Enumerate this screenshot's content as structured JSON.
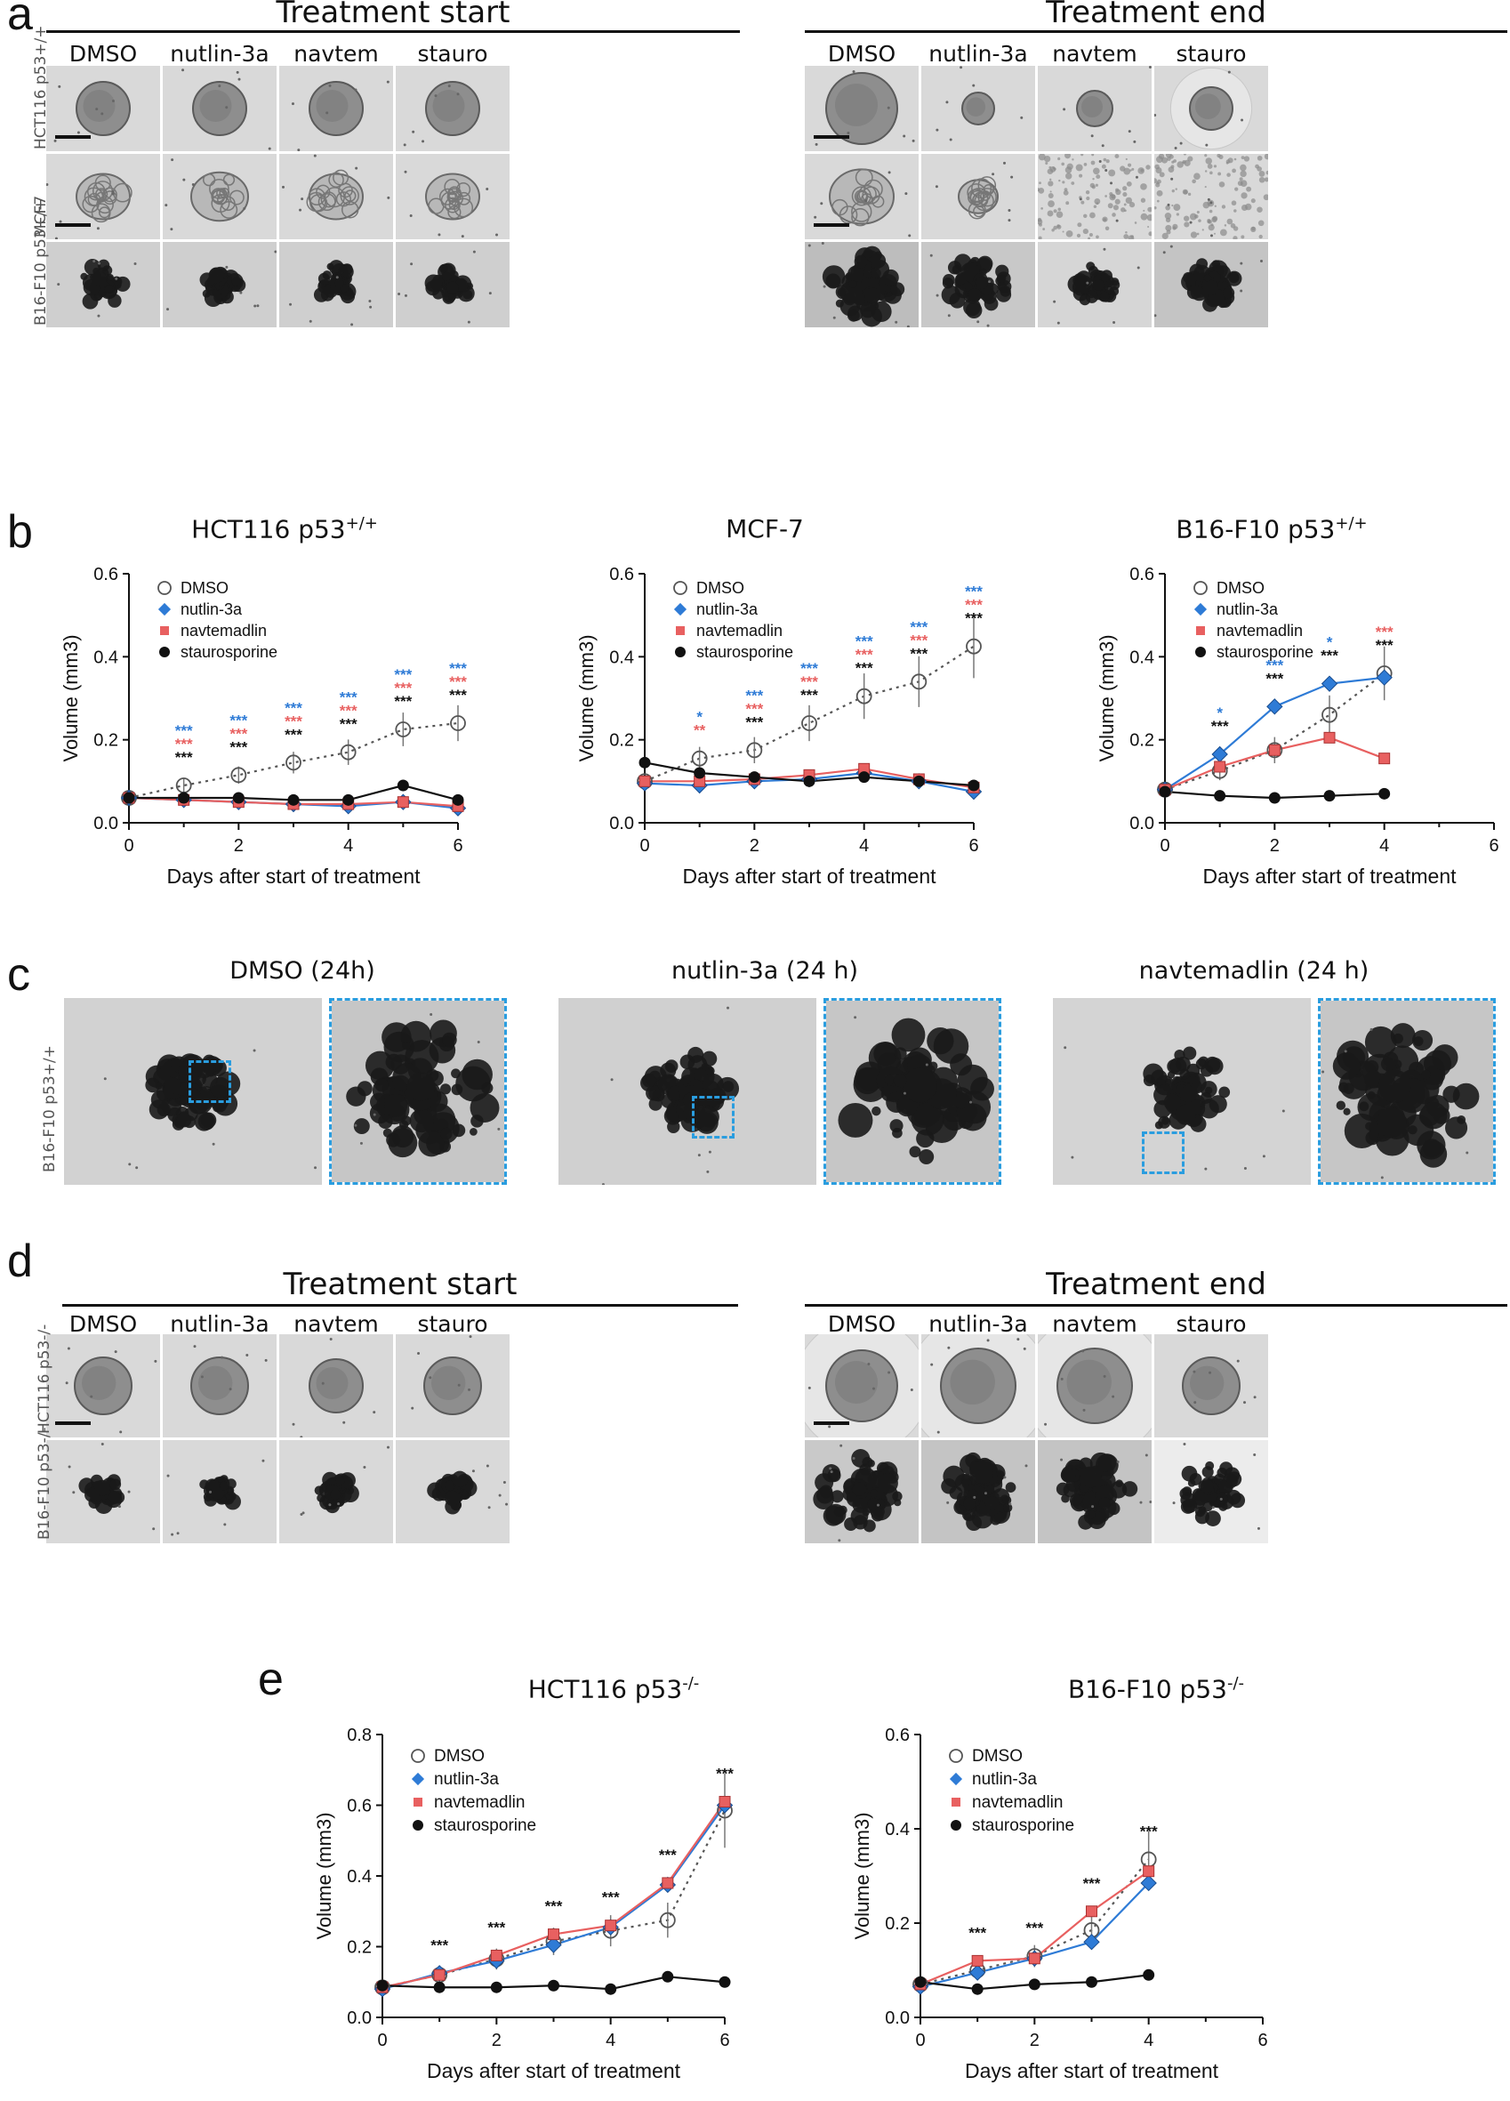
{
  "panels": {
    "a": "a",
    "b": "b",
    "c": "c",
    "d": "d",
    "e": "e"
  },
  "panel_a": {
    "start_title": "Treatment start",
    "end_title": "Treatment end",
    "columns": [
      "DMSO",
      "nutlin-3a",
      "navtem",
      "stauro"
    ],
    "rows": [
      "HCT116 p53+/+",
      "MCF7",
      "B16-F10 p53+/+"
    ]
  },
  "panel_c": {
    "row_label": "B16-F10 p53+/+",
    "titles": [
      "DMSO (24h)",
      "nutlin-3a (24 h)",
      "navtemadlin (24 h)"
    ]
  },
  "panel_d": {
    "start_title": "Treatment start",
    "end_title": "Treatment end",
    "columns": [
      "DMSO",
      "nutlin-3a",
      "navtem",
      "stauro"
    ],
    "rows": [
      "HCT116 p53-/-",
      "B16-F10 p53-/-"
    ]
  },
  "colors": {
    "dmso": "#555555",
    "nutlin": "#2e7bd6",
    "navtem": "#e86060",
    "stauro": "#111111",
    "highlight": "#2a9ddf"
  },
  "legend": [
    "DMSO",
    "nutlin-3a",
    "navtemadlin",
    "staurosporine"
  ],
  "chart_data": [
    {
      "id": "b1",
      "type": "line",
      "title": "HCT116 p53",
      "title_sup": "+/+",
      "xlabel": "Days after start of treatment",
      "ylabel": "Volume (mm3)",
      "xlim": [
        0,
        6
      ],
      "ylim": [
        0,
        0.6
      ],
      "xticks": [
        "0",
        "2",
        "4",
        "6"
      ],
      "yticks": [
        "0.0",
        "0.2",
        "0.4",
        "0.6"
      ],
      "x": [
        0,
        1,
        2,
        3,
        4,
        5,
        6
      ],
      "series": [
        {
          "name": "DMSO",
          "values": [
            0.06,
            0.09,
            0.115,
            0.145,
            0.17,
            0.225,
            0.24
          ]
        },
        {
          "name": "nutlin-3a",
          "values": [
            0.06,
            0.055,
            0.05,
            0.045,
            0.04,
            0.05,
            0.035
          ]
        },
        {
          "name": "navtemadlin",
          "values": [
            0.06,
            0.055,
            0.05,
            0.045,
            0.045,
            0.05,
            0.04
          ]
        },
        {
          "name": "staurosporine",
          "values": [
            0.06,
            0.06,
            0.06,
            0.055,
            0.055,
            0.09,
            0.055
          ]
        }
      ],
      "stars": [
        {
          "x": 1,
          "rows": [
            "***",
            "***",
            "***"
          ]
        },
        {
          "x": 2,
          "rows": [
            "***",
            "***",
            "***"
          ]
        },
        {
          "x": 3,
          "rows": [
            "***",
            "***",
            "***"
          ]
        },
        {
          "x": 4,
          "rows": [
            "***",
            "***",
            "***"
          ]
        },
        {
          "x": 5,
          "rows": [
            "***",
            "***",
            "***"
          ]
        },
        {
          "x": 6,
          "rows": [
            "***",
            "***",
            "***"
          ]
        }
      ]
    },
    {
      "id": "b2",
      "type": "line",
      "title": "MCF-7",
      "title_sup": "",
      "xlabel": "Days after start of treatment",
      "ylabel": "Volume (mm3)",
      "xlim": [
        0,
        6
      ],
      "ylim": [
        0,
        0.6
      ],
      "xticks": [
        "0",
        "2",
        "4",
        "6"
      ],
      "yticks": [
        "0.0",
        "0.2",
        "0.4",
        "0.6"
      ],
      "x": [
        0,
        1,
        2,
        3,
        4,
        5,
        6
      ],
      "series": [
        {
          "name": "DMSO",
          "values": [
            0.1,
            0.155,
            0.175,
            0.24,
            0.305,
            0.34,
            0.425
          ]
        },
        {
          "name": "nutlin-3a",
          "values": [
            0.095,
            0.09,
            0.1,
            0.105,
            0.12,
            0.1,
            0.075
          ]
        },
        {
          "name": "navtemadlin",
          "values": [
            0.1,
            0.1,
            0.105,
            0.115,
            0.13,
            0.105,
            0.085
          ]
        },
        {
          "name": "staurosporine",
          "values": [
            0.145,
            0.12,
            0.11,
            0.1,
            0.11,
            0.1,
            0.09
          ]
        }
      ],
      "stars": [
        {
          "x": 1,
          "rows": [
            "*",
            "**"
          ]
        },
        {
          "x": 2,
          "rows": [
            "***",
            "***",
            "***"
          ]
        },
        {
          "x": 3,
          "rows": [
            "***",
            "***",
            "***"
          ]
        },
        {
          "x": 4,
          "rows": [
            "***",
            "***",
            "***"
          ]
        },
        {
          "x": 5,
          "rows": [
            "***",
            "***",
            "***"
          ]
        },
        {
          "x": 6,
          "rows": [
            "***",
            "***",
            "***"
          ]
        }
      ]
    },
    {
      "id": "b3",
      "type": "line",
      "title": "B16-F10 p53",
      "title_sup": "+/+",
      "xlabel": "Days after start of treatment",
      "ylabel": "Volume (mm3)",
      "xlim": [
        0,
        6
      ],
      "ylim": [
        0,
        0.6
      ],
      "xticks": [
        "0",
        "2",
        "4",
        "6"
      ],
      "yticks": [
        "0.0",
        "0.2",
        "0.4",
        "0.6"
      ],
      "x": [
        0,
        1,
        2,
        3,
        4
      ],
      "series": [
        {
          "name": "DMSO",
          "values": [
            0.08,
            0.125,
            0.175,
            0.26,
            0.36
          ]
        },
        {
          "name": "nutlin-3a",
          "values": [
            0.08,
            0.165,
            0.28,
            0.335,
            0.35
          ]
        },
        {
          "name": "navtemadlin",
          "values": [
            0.08,
            0.135,
            0.175,
            0.205,
            0.155
          ]
        },
        {
          "name": "staurosporine",
          "values": [
            0.075,
            0.065,
            0.06,
            0.065,
            0.07
          ]
        }
      ],
      "stars": [
        {
          "x": 1,
          "rows": [
            "*",
            "***"
          ],
          "cls": [
            "nutlin",
            "black"
          ]
        },
        {
          "x": 2,
          "rows": [
            "***",
            "***"
          ],
          "cls": [
            "nutlin",
            "black"
          ]
        },
        {
          "x": 3,
          "rows": [
            "*",
            "***"
          ],
          "cls": [
            "nutlin",
            "black"
          ]
        },
        {
          "x": 4,
          "rows": [
            "***",
            "***"
          ],
          "cls": [
            "navtem",
            "black"
          ]
        }
      ]
    },
    {
      "id": "e1",
      "type": "line",
      "title": "HCT116 p53",
      "title_sup": "-/-",
      "xlabel": "Days after start of treatment",
      "ylabel": "Volume (mm3)",
      "xlim": [
        0,
        6
      ],
      "ylim": [
        0,
        0.8
      ],
      "xticks": [
        "0",
        "2",
        "4",
        "6"
      ],
      "yticks": [
        "0.0",
        "0.2",
        "0.4",
        "0.6",
        "0.8"
      ],
      "x": [
        0,
        1,
        2,
        3,
        4,
        5,
        6
      ],
      "series": [
        {
          "name": "DMSO",
          "values": [
            0.085,
            0.12,
            0.165,
            0.215,
            0.245,
            0.275,
            0.585
          ]
        },
        {
          "name": "nutlin-3a",
          "values": [
            0.08,
            0.125,
            0.16,
            0.205,
            0.255,
            0.375,
            0.6
          ]
        },
        {
          "name": "navtemadlin",
          "values": [
            0.085,
            0.12,
            0.175,
            0.235,
            0.26,
            0.38,
            0.61
          ]
        },
        {
          "name": "staurosporine",
          "values": [
            0.09,
            0.085,
            0.085,
            0.09,
            0.08,
            0.115,
            0.1
          ]
        }
      ],
      "stars": [
        {
          "x": 1,
          "rows": [
            "***"
          ]
        },
        {
          "x": 2,
          "rows": [
            "***"
          ]
        },
        {
          "x": 3,
          "rows": [
            "***"
          ]
        },
        {
          "x": 4,
          "rows": [
            "***"
          ]
        },
        {
          "x": 5,
          "rows": [
            "***"
          ]
        },
        {
          "x": 6,
          "rows": [
            "***"
          ]
        }
      ]
    },
    {
      "id": "e2",
      "type": "line",
      "title": "B16-F10 p53",
      "title_sup": "-/-",
      "xlabel": "Days after start of treatment",
      "ylabel": "Volume (mm3)",
      "xlim": [
        0,
        6
      ],
      "ylim": [
        0,
        0.6
      ],
      "xticks": [
        "0",
        "2",
        "4",
        "6"
      ],
      "yticks": [
        "0.0",
        "0.2",
        "0.4",
        "0.6"
      ],
      "x": [
        0,
        1,
        2,
        3,
        4
      ],
      "series": [
        {
          "name": "DMSO",
          "values": [
            0.07,
            0.1,
            0.13,
            0.185,
            0.335
          ]
        },
        {
          "name": "nutlin-3a",
          "values": [
            0.065,
            0.095,
            0.125,
            0.16,
            0.285
          ]
        },
        {
          "name": "navtemadlin",
          "values": [
            0.07,
            0.12,
            0.125,
            0.225,
            0.31
          ]
        },
        {
          "name": "staurosporine",
          "values": [
            0.075,
            0.06,
            0.07,
            0.075,
            0.09
          ]
        }
      ],
      "stars": [
        {
          "x": 1,
          "rows": [
            "***"
          ]
        },
        {
          "x": 2,
          "rows": [
            "***"
          ]
        },
        {
          "x": 3,
          "rows": [
            "***"
          ]
        },
        {
          "x": 4,
          "rows": [
            "***"
          ]
        }
      ]
    }
  ]
}
